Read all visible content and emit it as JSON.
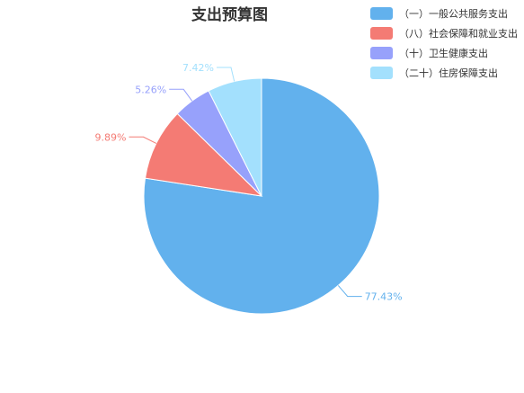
{
  "chart_data": {
    "type": "pie",
    "title": "支出预算图",
    "legend_position": "top-right",
    "slices": [
      {
        "label": "（一）一般公共服务支出",
        "value": 77.43,
        "display": "77.43%",
        "color": "#62b1ed"
      },
      {
        "label": "（八）社会保障和就业支出",
        "value": 9.89,
        "display": "9.89%",
        "color": "#f47b74"
      },
      {
        "label": "（十）卫生健康支出",
        "value": 5.26,
        "display": "5.26%",
        "color": "#97a1fb"
      },
      {
        "label": "（二十）住房保障支出",
        "value": 7.42,
        "display": "7.42%",
        "color": "#a3e0fd"
      }
    ]
  }
}
